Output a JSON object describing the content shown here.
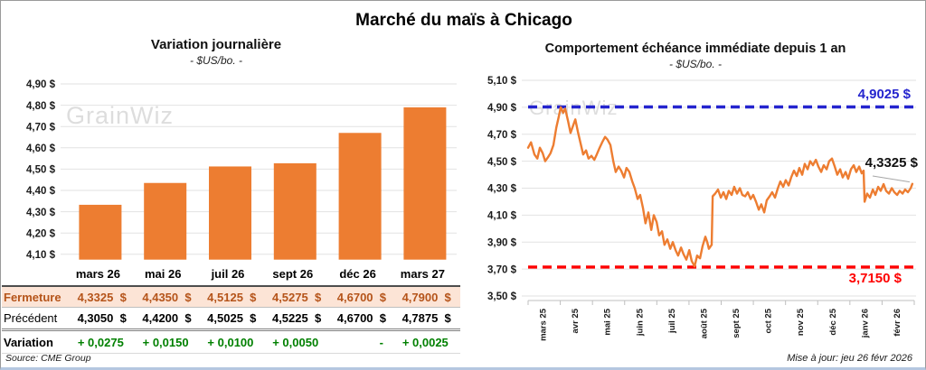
{
  "page": {
    "title": "Marché du maïs à Chicago",
    "watermark": "GrainWiz",
    "source": "Source: CME Group",
    "updated": "Mise à jour: jeu 26 févr 2026"
  },
  "colors": {
    "orange": "#ED7D31",
    "peach_bg": "#FCE4D6",
    "fermeture_text": "#B5541A",
    "green": "#008000",
    "blue": "#2424CE",
    "red": "#FE0000",
    "grid": "#E2E2E2",
    "watermark": "#DCDCDC"
  },
  "table": {
    "columns": [
      "mars 26",
      "mai 26",
      "juil 26",
      "sept 26",
      "déc 26",
      "mars 27"
    ],
    "rows": [
      {
        "label": "Fermeture",
        "values": [
          "4,3325  $",
          "4,4350  $",
          "4,5125  $",
          "4,5275  $",
          "4,6700  $",
          "4,7900  $"
        ]
      },
      {
        "label": "Précédent",
        "values": [
          "4,3050  $",
          "4,4200  $",
          "4,5025  $",
          "4,5225  $",
          "4,6700  $",
          "4,7875  $"
        ]
      },
      {
        "label": "Variation",
        "values": [
          "+ 0,0275",
          "+ 0,0150",
          "+ 0,0100",
          "+ 0,0050",
          "-",
          "+ 0,0025"
        ]
      }
    ]
  },
  "chart_data": [
    {
      "type": "bar",
      "title": "Variation journalière",
      "subtitle": "- $US/bo. -",
      "categories": [
        "mars 26",
        "mai 26",
        "juil 26",
        "sept 26",
        "déc 26",
        "mars 27"
      ],
      "values": [
        4.3325,
        4.435,
        4.5125,
        4.5275,
        4.67,
        4.79
      ],
      "ylabel": "$US/bo.",
      "ylim": [
        4.075,
        4.9
      ],
      "yticks": [
        4.9,
        4.8,
        4.7,
        4.6,
        4.5,
        4.4,
        4.3,
        4.2,
        4.1
      ],
      "ytick_labels": [
        "4,90 $",
        "4,80 $",
        "4,70 $",
        "4,60 $",
        "4,50 $",
        "4,40 $",
        "4,30 $",
        "4,20 $",
        "4,10 $"
      ],
      "grid": true,
      "bar_color": "#ED7D31"
    },
    {
      "type": "line",
      "title": "Comportement échéance immédiate depuis 1 an",
      "subtitle": "- $US/bo. -",
      "ylabel": "$US/bo.",
      "ylim": [
        3.5,
        5.1
      ],
      "yticks": [
        5.1,
        4.9,
        4.7,
        4.5,
        4.3,
        4.1,
        3.9,
        3.7,
        3.5
      ],
      "ytick_labels": [
        "5,10 $",
        "4,90 $",
        "4,70 $",
        "4,50 $",
        "4,30 $",
        "4,10 $",
        "3,90 $",
        "3,70 $",
        "3,50 $"
      ],
      "xtick_labels": [
        "mars 25",
        "avr 25",
        "mai 25",
        "juin 25",
        "juil 25",
        "août 25",
        "sept 25",
        "oct 25",
        "nov 25",
        "déc 25",
        "janv 26",
        "févr 26"
      ],
      "x_span": 12.2,
      "grid": true,
      "line_color": "#ED7D31",
      "hlines": [
        {
          "value": 4.9025,
          "label": "4,9025 $",
          "color": "#2424CE"
        },
        {
          "value": 3.715,
          "label": "3,7150 $",
          "color": "#FE0000"
        }
      ],
      "last_value_label": "4,3325 $",
      "last_value": 4.3325,
      "points": [
        [
          0,
          4.6
        ],
        [
          0.09,
          4.64
        ],
        [
          0.2,
          4.55
        ],
        [
          0.29,
          4.52
        ],
        [
          0.37,
          4.6
        ],
        [
          0.46,
          4.56
        ],
        [
          0.54,
          4.5
        ],
        [
          0.63,
          4.53
        ],
        [
          0.71,
          4.56
        ],
        [
          0.8,
          4.62
        ],
        [
          0.89,
          4.75
        ],
        [
          0.97,
          4.83
        ],
        [
          1.03,
          4.9
        ],
        [
          1.11,
          4.86
        ],
        [
          1.17,
          4.89
        ],
        [
          1.26,
          4.8
        ],
        [
          1.34,
          4.71
        ],
        [
          1.4,
          4.75
        ],
        [
          1.49,
          4.81
        ],
        [
          1.57,
          4.72
        ],
        [
          1.66,
          4.63
        ],
        [
          1.74,
          4.55
        ],
        [
          1.83,
          4.58
        ],
        [
          1.91,
          4.52
        ],
        [
          2.0,
          4.54
        ],
        [
          2.09,
          4.51
        ],
        [
          2.17,
          4.55
        ],
        [
          2.26,
          4.6
        ],
        [
          2.34,
          4.64
        ],
        [
          2.43,
          4.68
        ],
        [
          2.51,
          4.66
        ],
        [
          2.6,
          4.62
        ],
        [
          2.69,
          4.5
        ],
        [
          2.77,
          4.42
        ],
        [
          2.86,
          4.46
        ],
        [
          2.94,
          4.43
        ],
        [
          3.03,
          4.38
        ],
        [
          3.11,
          4.45
        ],
        [
          3.2,
          4.42
        ],
        [
          3.29,
          4.35
        ],
        [
          3.37,
          4.3
        ],
        [
          3.46,
          4.22
        ],
        [
          3.54,
          4.25
        ],
        [
          3.63,
          4.15
        ],
        [
          3.71,
          4.04
        ],
        [
          3.8,
          4.12
        ],
        [
          3.89,
          3.99
        ],
        [
          3.97,
          4.1
        ],
        [
          4.06,
          4.05
        ],
        [
          4.14,
          3.95
        ],
        [
          4.23,
          3.98
        ],
        [
          4.31,
          3.88
        ],
        [
          4.4,
          3.92
        ],
        [
          4.49,
          3.85
        ],
        [
          4.57,
          3.9
        ],
        [
          4.66,
          3.84
        ],
        [
          4.74,
          3.8
        ],
        [
          4.83,
          3.86
        ],
        [
          4.91,
          3.81
        ],
        [
          5.0,
          3.77
        ],
        [
          5.09,
          3.84
        ],
        [
          5.17,
          3.76
        ],
        [
          5.26,
          3.72
        ],
        [
          5.34,
          3.8
        ],
        [
          5.43,
          3.78
        ],
        [
          5.51,
          3.87
        ],
        [
          5.6,
          3.94
        ],
        [
          5.66,
          3.9
        ],
        [
          5.71,
          3.85
        ],
        [
          5.77,
          3.87
        ],
        [
          5.8,
          3.88
        ],
        [
          5.83,
          4.24
        ],
        [
          5.91,
          4.26
        ],
        [
          6.0,
          4.29
        ],
        [
          6.09,
          4.23
        ],
        [
          6.17,
          4.27
        ],
        [
          6.26,
          4.22
        ],
        [
          6.34,
          4.28
        ],
        [
          6.43,
          4.25
        ],
        [
          6.51,
          4.31
        ],
        [
          6.6,
          4.26
        ],
        [
          6.69,
          4.3
        ],
        [
          6.77,
          4.25
        ],
        [
          6.86,
          4.24
        ],
        [
          6.94,
          4.27
        ],
        [
          7.03,
          4.22
        ],
        [
          7.11,
          4.25
        ],
        [
          7.2,
          4.2
        ],
        [
          7.29,
          4.14
        ],
        [
          7.37,
          4.18
        ],
        [
          7.46,
          4.12
        ],
        [
          7.54,
          4.21
        ],
        [
          7.63,
          4.24
        ],
        [
          7.71,
          4.27
        ],
        [
          7.8,
          4.23
        ],
        [
          7.89,
          4.3
        ],
        [
          7.97,
          4.35
        ],
        [
          8.06,
          4.31
        ],
        [
          8.14,
          4.36
        ],
        [
          8.23,
          4.32
        ],
        [
          8.31,
          4.38
        ],
        [
          8.4,
          4.43
        ],
        [
          8.49,
          4.39
        ],
        [
          8.57,
          4.45
        ],
        [
          8.66,
          4.4
        ],
        [
          8.74,
          4.48
        ],
        [
          8.83,
          4.44
        ],
        [
          8.91,
          4.5
        ],
        [
          9.0,
          4.47
        ],
        [
          9.09,
          4.51
        ],
        [
          9.17,
          4.46
        ],
        [
          9.26,
          4.42
        ],
        [
          9.34,
          4.47
        ],
        [
          9.43,
          4.44
        ],
        [
          9.51,
          4.5
        ],
        [
          9.6,
          4.52
        ],
        [
          9.69,
          4.46
        ],
        [
          9.77,
          4.4
        ],
        [
          9.86,
          4.44
        ],
        [
          9.94,
          4.38
        ],
        [
          10.03,
          4.42
        ],
        [
          10.11,
          4.37
        ],
        [
          10.2,
          4.44
        ],
        [
          10.29,
          4.47
        ],
        [
          10.37,
          4.42
        ],
        [
          10.46,
          4.46
        ],
        [
          10.54,
          4.41
        ],
        [
          10.6,
          4.43
        ],
        [
          10.63,
          4.2
        ],
        [
          10.71,
          4.26
        ],
        [
          10.8,
          4.23
        ],
        [
          10.89,
          4.29
        ],
        [
          10.97,
          4.25
        ],
        [
          11.06,
          4.31
        ],
        [
          11.14,
          4.28
        ],
        [
          11.23,
          4.33
        ],
        [
          11.31,
          4.28
        ],
        [
          11.4,
          4.26
        ],
        [
          11.49,
          4.3
        ],
        [
          11.57,
          4.27
        ],
        [
          11.66,
          4.25
        ],
        [
          11.74,
          4.28
        ],
        [
          11.83,
          4.26
        ],
        [
          11.91,
          4.29
        ],
        [
          12.0,
          4.27
        ],
        [
          12.09,
          4.3
        ],
        [
          12.14,
          4.3325
        ]
      ]
    }
  ]
}
